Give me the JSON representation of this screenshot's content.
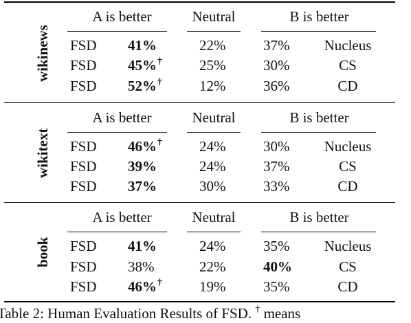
{
  "headers": {
    "a_better": "A is better",
    "neutral": "Neutral",
    "b_better": "B is better"
  },
  "groups": [
    {
      "dataset": "wikinews",
      "rows": [
        {
          "model_a": "FSD",
          "a": "41%",
          "a_bold": true,
          "a_dagger": false,
          "neutral": "22%",
          "b": "37%",
          "b_bold": false,
          "model_b": "Nucleus"
        },
        {
          "model_a": "FSD",
          "a": "45%",
          "a_bold": true,
          "a_dagger": true,
          "neutral": "25%",
          "b": "30%",
          "b_bold": false,
          "model_b": "CS"
        },
        {
          "model_a": "FSD",
          "a": "52%",
          "a_bold": true,
          "a_dagger": true,
          "neutral": "12%",
          "b": "36%",
          "b_bold": false,
          "model_b": "CD"
        }
      ]
    },
    {
      "dataset": "wikitext",
      "rows": [
        {
          "model_a": "FSD",
          "a": "46%",
          "a_bold": true,
          "a_dagger": true,
          "neutral": "24%",
          "b": "30%",
          "b_bold": false,
          "model_b": "Nucleus"
        },
        {
          "model_a": "FSD",
          "a": "39%",
          "a_bold": true,
          "a_dagger": false,
          "neutral": "24%",
          "b": "37%",
          "b_bold": false,
          "model_b": "CS"
        },
        {
          "model_a": "FSD",
          "a": "37%",
          "a_bold": true,
          "a_dagger": false,
          "neutral": "30%",
          "b": "33%",
          "b_bold": false,
          "model_b": "CD"
        }
      ]
    },
    {
      "dataset": "book",
      "rows": [
        {
          "model_a": "FSD",
          "a": "41%",
          "a_bold": true,
          "a_dagger": false,
          "neutral": "24%",
          "b": "35%",
          "b_bold": false,
          "model_b": "Nucleus"
        },
        {
          "model_a": "FSD",
          "a": "38%",
          "a_bold": false,
          "a_dagger": false,
          "neutral": "22%",
          "b": "40%",
          "b_bold": true,
          "model_b": "CS"
        },
        {
          "model_a": "FSD",
          "a": "46%",
          "a_bold": true,
          "a_dagger": true,
          "neutral": "19%",
          "b": "35%",
          "b_bold": false,
          "model_b": "CD"
        }
      ]
    }
  ],
  "caption": {
    "prefix": "Table 2:  Human Evaluation Results of FSD.",
    "dagger": "†",
    "suffix": "means"
  }
}
